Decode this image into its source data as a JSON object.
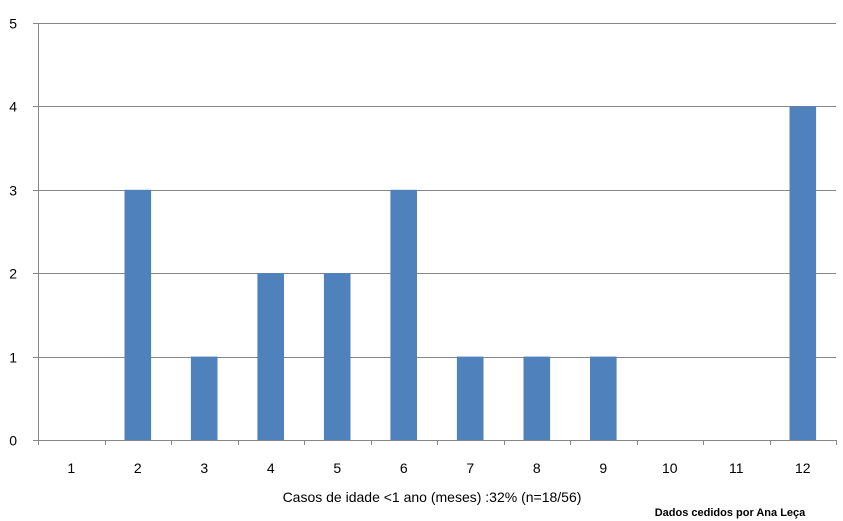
{
  "chart_data": {
    "type": "bar",
    "categories": [
      "1",
      "2",
      "3",
      "4",
      "5",
      "6",
      "7",
      "8",
      "9",
      "10",
      "11",
      "12"
    ],
    "values": [
      0,
      3,
      1,
      2,
      2,
      3,
      1,
      1,
      1,
      0,
      0,
      4
    ],
    "y_ticks": [
      "0",
      "1",
      "2",
      "3",
      "4",
      "5"
    ],
    "ylim": [
      0,
      5
    ],
    "xlabel": "Casos de idade <1 ano (meses) :32% (n=18/56)",
    "ylabel": "",
    "title": "",
    "bar_color": "#4f81bd",
    "grid": "horizontal major gridlines",
    "legend": "none"
  },
  "credit": "Dados cedidos por Ana Leça"
}
